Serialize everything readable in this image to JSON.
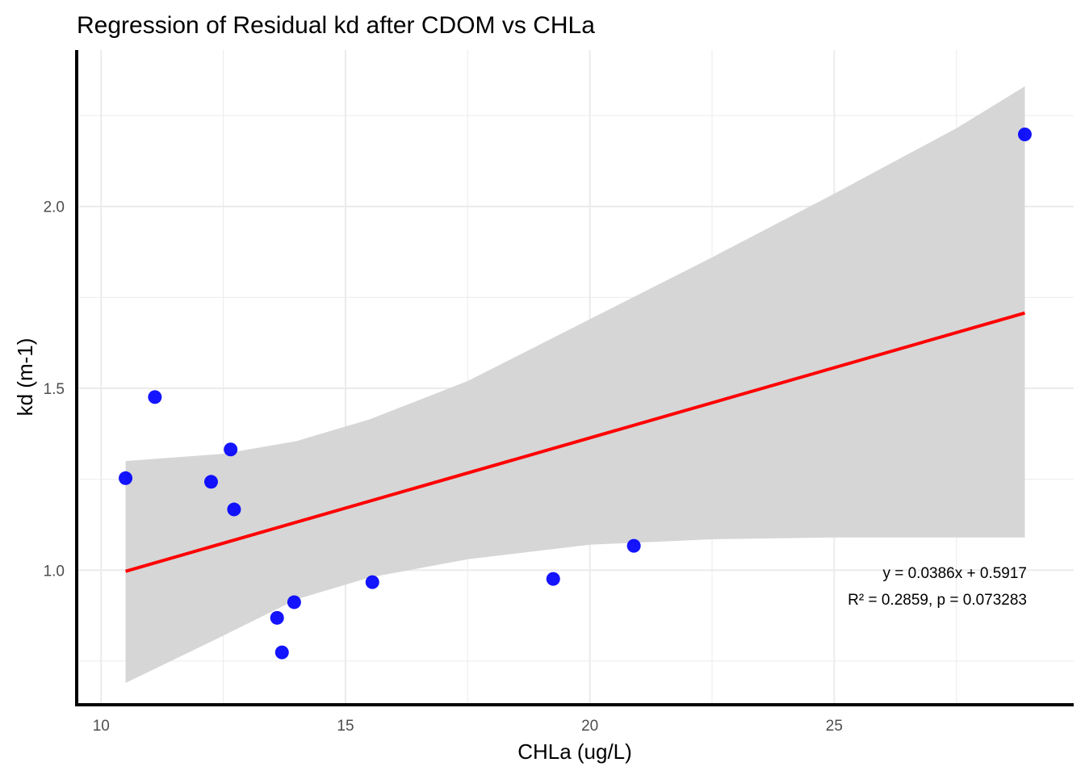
{
  "chart_data": {
    "type": "scatter",
    "title": "Regression of Residual kd after CDOM vs CHLa",
    "xlabel": "CHLa (ug/L)",
    "ylabel": "kd (m-1)",
    "xlim": [
      9.5,
      29.9
    ],
    "ylim": [
      0.63,
      2.43
    ],
    "x_ticks": [
      10,
      15,
      20,
      25
    ],
    "x_tick_labels": [
      "10",
      "15",
      "20",
      "25"
    ],
    "x_minor_ticks": [
      12.5,
      17.5,
      22.5,
      27.5
    ],
    "y_ticks": [
      1.0,
      1.5,
      2.0
    ],
    "y_tick_labels": [
      "1.0",
      "1.5",
      "2.0"
    ],
    "y_minor_ticks": [
      0.75,
      1.25,
      1.75,
      2.25
    ],
    "grid": true,
    "colors": {
      "points": "#0000ff",
      "fit_line": "#ff0000",
      "confidence_band": "#d6d6d6",
      "grid": "#ebebeb",
      "axis": "#000000"
    },
    "points": [
      {
        "x": 10.5,
        "y": 1.253
      },
      {
        "x": 11.1,
        "y": 1.476
      },
      {
        "x": 12.25,
        "y": 1.243
      },
      {
        "x": 12.65,
        "y": 1.332
      },
      {
        "x": 12.72,
        "y": 1.167
      },
      {
        "x": 13.6,
        "y": 0.869
      },
      {
        "x": 13.7,
        "y": 0.774
      },
      {
        "x": 13.95,
        "y": 0.912
      },
      {
        "x": 15.55,
        "y": 0.967
      },
      {
        "x": 19.25,
        "y": 0.976
      },
      {
        "x": 20.9,
        "y": 1.067
      },
      {
        "x": 28.9,
        "y": 2.198
      }
    ],
    "fit": {
      "slope": 0.0386,
      "intercept": 0.5917,
      "x_range": [
        10.5,
        28.9
      ]
    },
    "confidence_band": {
      "x": [
        10.5,
        12.5,
        14.0,
        15.5,
        17.5,
        20.0,
        22.5,
        25.0,
        27.5,
        28.9
      ],
      "lower": [
        0.69,
        0.82,
        0.92,
        0.98,
        1.03,
        1.07,
        1.085,
        1.09,
        1.09,
        1.09
      ],
      "upper": [
        1.3,
        1.32,
        1.355,
        1.415,
        1.52,
        1.69,
        1.86,
        2.035,
        2.215,
        2.33
      ]
    },
    "annotations": [
      "y = 0.0386x + 0.5917",
      "R² = 0.2859, p = 0.073283"
    ]
  }
}
